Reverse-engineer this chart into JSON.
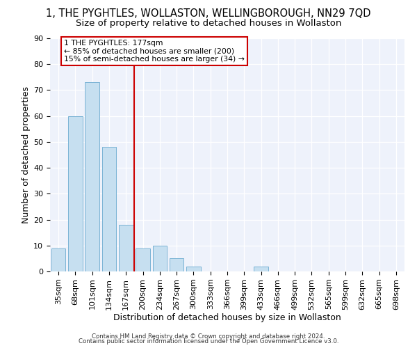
{
  "title": "1, THE PYGHTLES, WOLLASTON, WELLINGBOROUGH, NN29 7QD",
  "subtitle": "Size of property relative to detached houses in Wollaston",
  "xlabel": "Distribution of detached houses by size in Wollaston",
  "ylabel": "Number of detached properties",
  "bar_labels": [
    "35sqm",
    "68sqm",
    "101sqm",
    "134sqm",
    "167sqm",
    "200sqm",
    "234sqm",
    "267sqm",
    "300sqm",
    "333sqm",
    "366sqm",
    "399sqm",
    "433sqm",
    "466sqm",
    "499sqm",
    "532sqm",
    "565sqm",
    "599sqm",
    "632sqm",
    "665sqm",
    "698sqm"
  ],
  "bar_values": [
    9,
    60,
    73,
    48,
    18,
    9,
    10,
    5,
    2,
    0,
    0,
    0,
    2,
    0,
    0,
    0,
    0,
    0,
    0,
    0,
    0
  ],
  "bar_color": "#c6dff0",
  "bar_edge_color": "#7ab3d4",
  "vline_x": 4.5,
  "vline_color": "#cc0000",
  "annotation_line1": "1 THE PYGHTLES: 177sqm",
  "annotation_line2": "← 85% of detached houses are smaller (200)",
  "annotation_line3": "15% of semi-detached houses are larger (34) →",
  "annotation_box_color": "#ffffff",
  "annotation_box_edge": "#cc0000",
  "ylim": [
    0,
    90
  ],
  "yticks": [
    0,
    10,
    20,
    30,
    40,
    50,
    60,
    70,
    80,
    90
  ],
  "footer1": "Contains HM Land Registry data © Crown copyright and database right 2024.",
  "footer2": "Contains public sector information licensed under the Open Government Licence v3.0.",
  "bg_color": "#eef2fb",
  "title_fontsize": 10.5,
  "subtitle_fontsize": 9.5,
  "axis_label_fontsize": 9,
  "tick_fontsize": 8
}
